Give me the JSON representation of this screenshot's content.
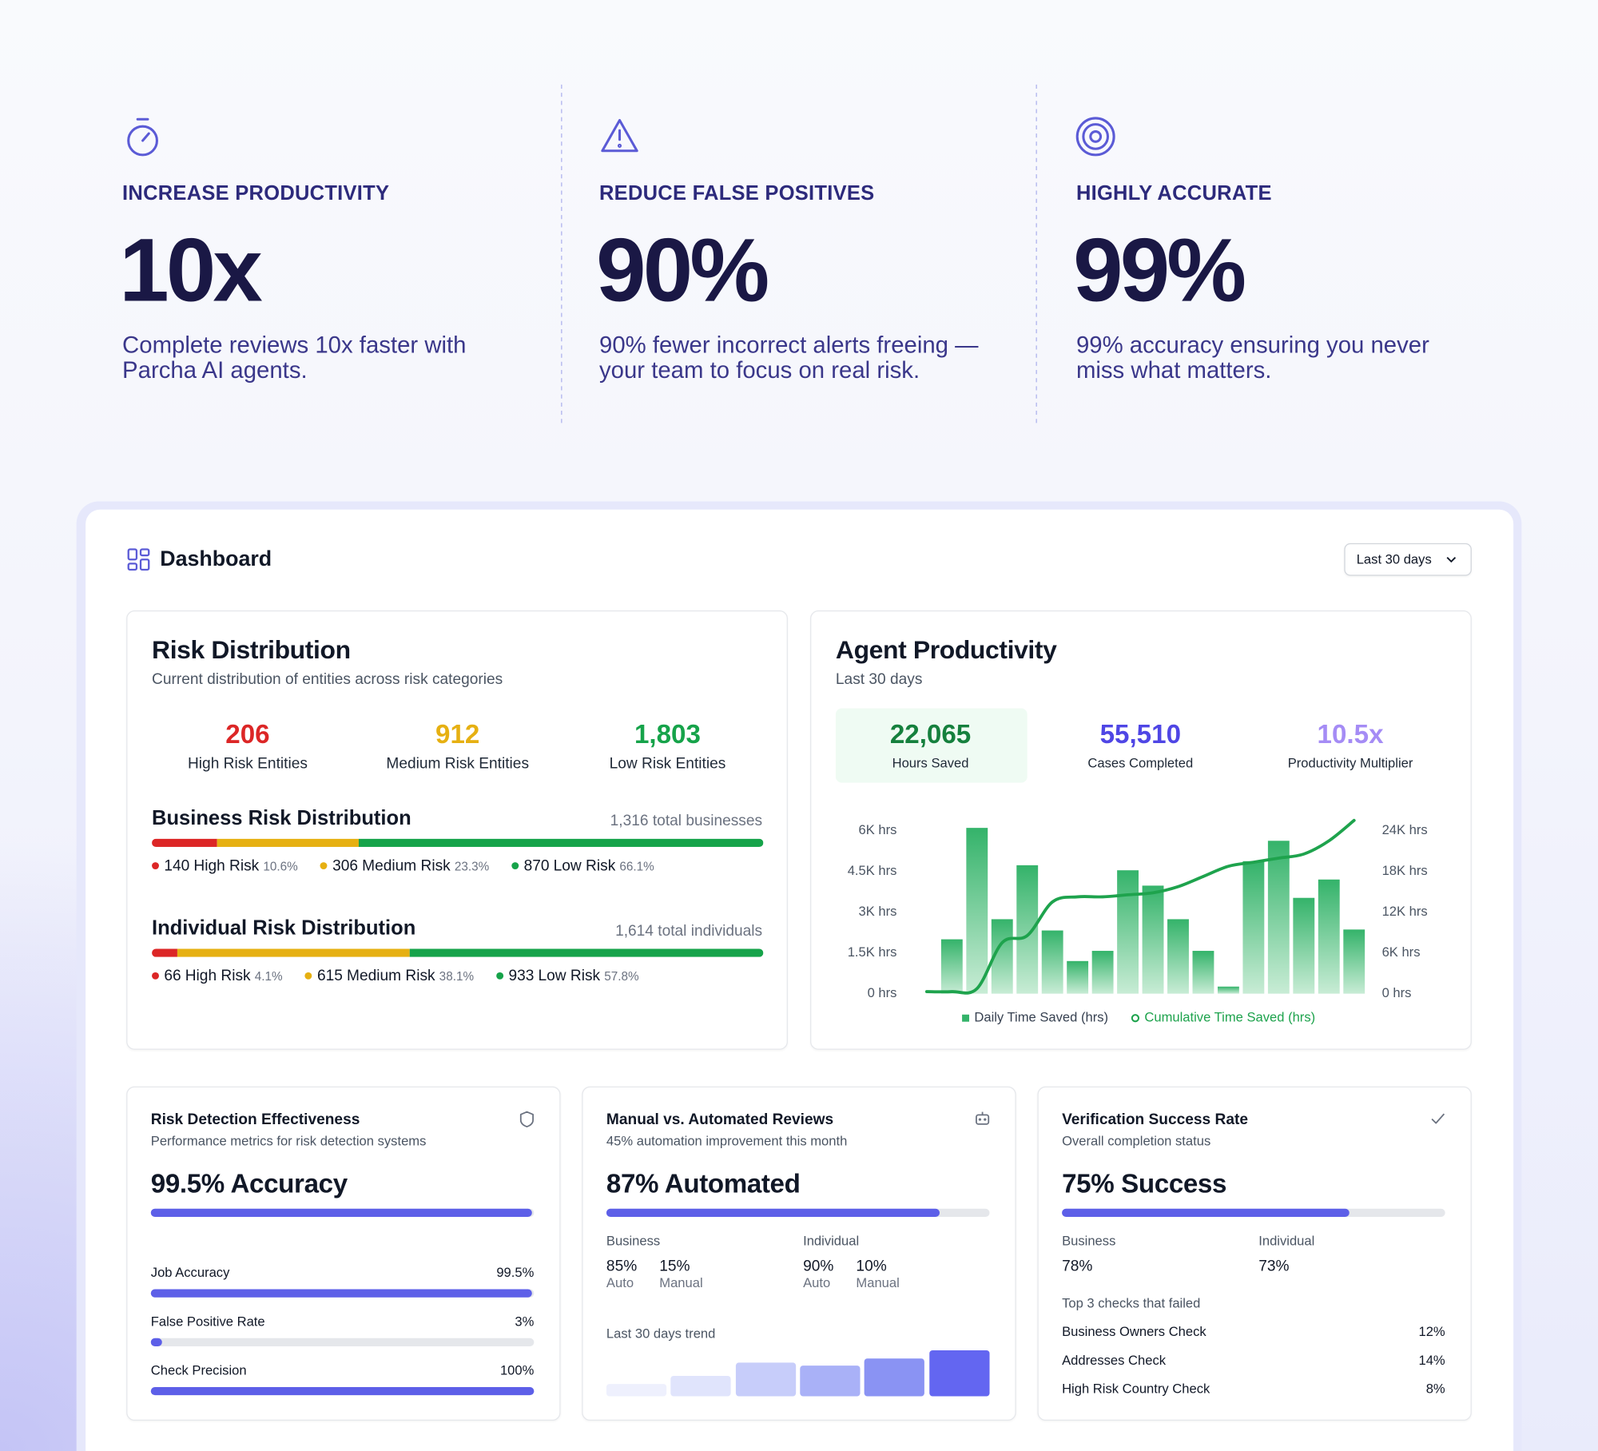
{
  "features": [
    {
      "title": "INCREASE PRODUCTIVITY",
      "stat": "10x",
      "description_lines": [
        "Complete reviews 10x faster with",
        "Parcha AI agents."
      ]
    },
    {
      "title": "REDUCE FALSE POSITIVES",
      "stat": "90%",
      "description_lines": [
        "90% fewer incorrect alerts freeing —",
        "your team to focus on real risk."
      ]
    },
    {
      "title": "HIGHLY ACCURATE",
      "stat": "99%",
      "description_lines": [
        "99% accuracy ensuring you never",
        "miss what matters."
      ]
    }
  ],
  "dashboard": {
    "title": "Dashboard",
    "range": "Last 30 days",
    "risk_distribution": {
      "title": "Risk Distribution",
      "subtitle": "Current distribution of entities across risk categories",
      "summary": [
        {
          "value": "206",
          "label": "High Risk Entities",
          "color": "#dc2626"
        },
        {
          "value": "912",
          "label": "Medium Risk Entities",
          "color": "#e6b012"
        },
        {
          "value": "1,803",
          "label": "Low Risk Entities",
          "color": "#16a34a"
        }
      ],
      "business": {
        "title": "Business Risk Distribution",
        "total": "1,316 total businesses",
        "segments": [
          {
            "count": 140,
            "label": "High Risk",
            "pct": "10.6%",
            "color": "#dc2626"
          },
          {
            "count": 306,
            "label": "Medium Risk",
            "pct": "23.3%",
            "color": "#e6b012"
          },
          {
            "count": 870,
            "label": "Low Risk",
            "pct": "66.1%",
            "color": "#16a34a"
          }
        ]
      },
      "individual": {
        "title": "Individual Risk Distribution",
        "total": "1,614 total individuals",
        "segments": [
          {
            "count": 66,
            "label": "High Risk",
            "pct": "4.1%",
            "color": "#dc2626"
          },
          {
            "count": 615,
            "label": "Medium Risk",
            "pct": "38.1%",
            "color": "#e6b012"
          },
          {
            "count": 933,
            "label": "Low Risk",
            "pct": "57.8%",
            "color": "#16a34a"
          }
        ]
      }
    },
    "agent_productivity": {
      "title": "Agent Productivity",
      "subtitle": "Last 30 days",
      "kpis": [
        {
          "value": "22,065",
          "label": "Hours Saved",
          "color": "#15803d"
        },
        {
          "value": "55,510",
          "label": "Cases Completed",
          "color": "#4f46e5"
        },
        {
          "value": "10.5x",
          "label": "Productivity Multiplier",
          "color": "#a58cf5"
        }
      ]
    },
    "effectiveness": {
      "title": "Risk Detection Effectiveness",
      "subtitle": "Performance metrics for risk detection systems",
      "headline": {
        "value": 99.5,
        "label": "99.5% Accuracy"
      },
      "metrics": [
        {
          "name": "Job Accuracy",
          "value": 99.5,
          "label": "99.5%"
        },
        {
          "name": "False Positive Rate",
          "value": 3,
          "label": "3%"
        },
        {
          "name": "Check Precision",
          "value": 100,
          "label": "100%"
        }
      ]
    },
    "automation": {
      "title": "Manual vs. Automated Reviews",
      "subtitle": "45% automation improvement this month",
      "headline": {
        "value": 87,
        "label": "87% Automated"
      },
      "groups": [
        {
          "name": "Business",
          "items": [
            {
              "value": "85%",
              "label": "Auto"
            },
            {
              "value": "15%",
              "label": "Manual"
            }
          ]
        },
        {
          "name": "Individual",
          "items": [
            {
              "value": "90%",
              "label": "Auto"
            },
            {
              "value": "10%",
              "label": "Manual"
            }
          ]
        }
      ],
      "trend_title": "Last 30 days trend",
      "trend": [
        12,
        20,
        33,
        30,
        37,
        45
      ],
      "trend_colors": [
        "#eef0fd",
        "#e0e4fc",
        "#c7cdfa",
        "#a9b1f7",
        "#8a93f3",
        "#6366f1"
      ]
    },
    "verification": {
      "title": "Verification Success Rate",
      "subtitle": "Overall completion status",
      "headline": {
        "value": 75,
        "label": "75% Success"
      },
      "groups": [
        {
          "name": "Business",
          "value": "78%"
        },
        {
          "name": "Individual",
          "value": "73%"
        }
      ],
      "failed_title": "Top 3 checks that failed",
      "failed": [
        {
          "name": "Business Owners Check",
          "value": "12%"
        },
        {
          "name": "Addresses Check",
          "value": "14%"
        },
        {
          "name": "High Risk Country Check",
          "value": "8%"
        }
      ]
    }
  },
  "chart_data": {
    "type": "bar",
    "categories": [
      null,
      null,
      null,
      null,
      null,
      null,
      null,
      null,
      null,
      null,
      null,
      null,
      null,
      null,
      null,
      null,
      null,
      null
    ],
    "series": [
      {
        "name": "Daily Time Saved (hrs)",
        "color": "#34b36a",
        "values": [
          0,
          2000,
          6100,
          2740,
          4725,
          2325,
          1200,
          1575,
          4540,
          3975,
          2740,
          1575,
          260,
          4875,
          5625,
          3525,
          4200,
          2360
        ]
      },
      {
        "name": "Cumulative Time Saved (hrs)",
        "color": "#1ea34d",
        "type": "line",
        "axis": "y2",
        "values": [
          300,
          300,
          750,
          7500,
          8550,
          13500,
          14250,
          14250,
          14550,
          14850,
          15750,
          17250,
          18750,
          19350,
          19950,
          20550,
          22500,
          25500
        ]
      }
    ],
    "ylim": [
      0,
      6000
    ],
    "yticks": [
      {
        "value": 0,
        "label": "0 hrs"
      },
      {
        "value": 1500,
        "label": "1.5K hrs"
      },
      {
        "value": 3000,
        "label": "3K hrs"
      },
      {
        "value": 4500,
        "label": "4.5K hrs"
      },
      {
        "value": 6000,
        "label": "6K hrs"
      }
    ],
    "y2lim": [
      0,
      24000
    ],
    "y2ticks": [
      {
        "value": 0,
        "label": "0 hrs"
      },
      {
        "value": 6000,
        "label": "6K hrs"
      },
      {
        "value": 12000,
        "label": "12K hrs"
      },
      {
        "value": 18000,
        "label": "18K hrs"
      },
      {
        "value": 24000,
        "label": "24K hrs"
      }
    ],
    "grid": false
  }
}
